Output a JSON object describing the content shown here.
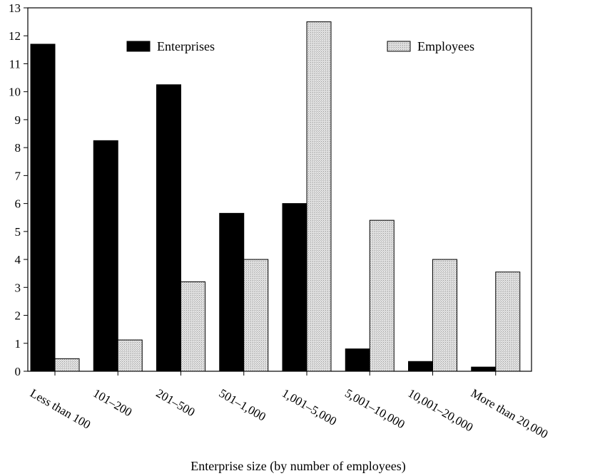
{
  "chart_data": {
    "type": "bar",
    "title": "",
    "xlabel": "Enterprise size (by number of employees)",
    "ylabel": "",
    "ylim": [
      0,
      13
    ],
    "yticks": [
      0,
      1,
      2,
      3,
      4,
      5,
      6,
      7,
      8,
      9,
      10,
      11,
      12,
      13
    ],
    "categories": [
      "Less than 100",
      "101–200",
      "201–500",
      "501–1,000",
      "1,001–5,000",
      "5,001–10,000",
      "10,001–20,000",
      "More than 20,000"
    ],
    "series": [
      {
        "name": "Enterprises",
        "color": "#000000",
        "values": [
          11.7,
          8.25,
          10.25,
          5.65,
          6.0,
          0.8,
          0.35,
          0.15
        ]
      },
      {
        "name": "Employees",
        "color": "#d8d8d8",
        "values": [
          0.45,
          1.12,
          3.2,
          4.0,
          12.5,
          5.4,
          4.0,
          3.55
        ]
      }
    ],
    "legend_position": "top",
    "grid": false
  }
}
